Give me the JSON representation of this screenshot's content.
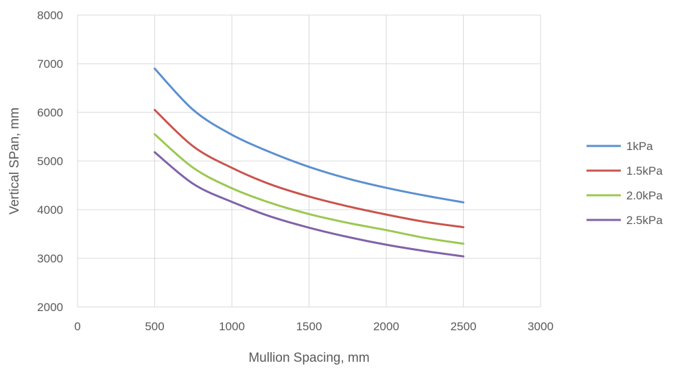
{
  "chart_data": {
    "type": "line",
    "xlabel": "Mullion Spacing, mm",
    "ylabel": "Vertical SPan, mm",
    "xlim": [
      0,
      3000
    ],
    "ylim": [
      2000,
      8000
    ],
    "xticks": [
      0,
      500,
      1000,
      1500,
      2000,
      2500,
      3000
    ],
    "yticks": [
      2000,
      3000,
      4000,
      5000,
      6000,
      7000,
      8000
    ],
    "grid": true,
    "legend_position": "right",
    "series": [
      {
        "name": "1kPa",
        "color": "#5b8fd1",
        "points": [
          [
            500,
            6900
          ],
          [
            750,
            6050
          ],
          [
            1000,
            5540
          ],
          [
            1250,
            5180
          ],
          [
            1500,
            4880
          ],
          [
            1750,
            4640
          ],
          [
            2000,
            4450
          ],
          [
            2250,
            4290
          ],
          [
            2500,
            4150
          ]
        ]
      },
      {
        "name": "1.5kPa",
        "color": "#c9544d",
        "points": [
          [
            500,
            6050
          ],
          [
            750,
            5300
          ],
          [
            1000,
            4860
          ],
          [
            1250,
            4520
          ],
          [
            1500,
            4270
          ],
          [
            1750,
            4070
          ],
          [
            2000,
            3900
          ],
          [
            2250,
            3750
          ],
          [
            2500,
            3640
          ]
        ]
      },
      {
        "name": "2.0kPa",
        "color": "#9bc850",
        "points": [
          [
            500,
            5550
          ],
          [
            750,
            4860
          ],
          [
            1000,
            4440
          ],
          [
            1250,
            4140
          ],
          [
            1500,
            3910
          ],
          [
            1750,
            3730
          ],
          [
            2000,
            3580
          ],
          [
            2250,
            3420
          ],
          [
            2500,
            3300
          ]
        ]
      },
      {
        "name": "2.5kPa",
        "color": "#8062a8",
        "points": [
          [
            500,
            5180
          ],
          [
            750,
            4530
          ],
          [
            1000,
            4160
          ],
          [
            1250,
            3860
          ],
          [
            1500,
            3630
          ],
          [
            1750,
            3440
          ],
          [
            2000,
            3280
          ],
          [
            2250,
            3150
          ],
          [
            2500,
            3040
          ]
        ]
      }
    ]
  }
}
